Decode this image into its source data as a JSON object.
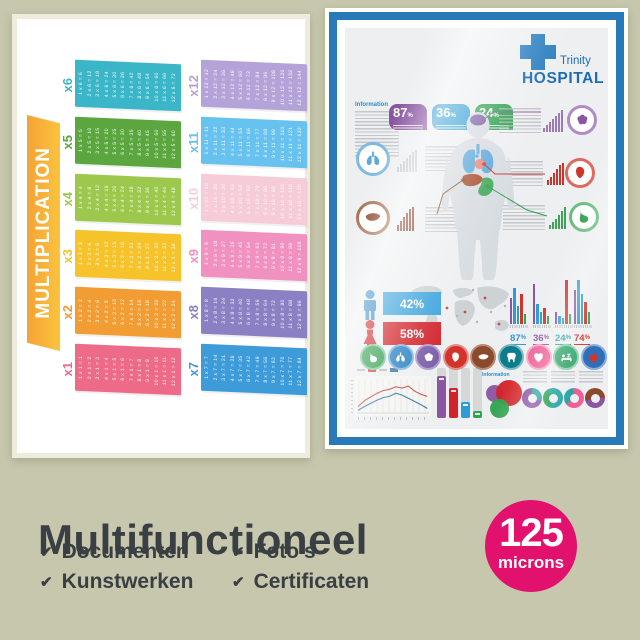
{
  "caption": {
    "title": "Multifunctioneel",
    "check_glyph": "✔",
    "features": [
      "Documenten",
      "Kunstwerken",
      "Foto's",
      "Certificaten"
    ],
    "badge": {
      "value": "125",
      "unit": "microns",
      "color": "#e2116e"
    }
  },
  "multiplication": {
    "title": "MULTIPLICATION",
    "banner_from": "#f4a336",
    "banner_to": "#fbc33e",
    "columns": [
      [
        {
          "label": "x6",
          "color": "#3bb6c8",
          "facts": [
            "1 x 6 = 6",
            "2 x 6 = 12",
            "3 x 6 = 18",
            "4 x 6 = 24",
            "5 x 6 = 30",
            "6 x 6 = 36",
            "7 x 6 = 42",
            "8 x 6 = 48",
            "9 x 6 = 54",
            "10 x 6 = 60",
            "11 x 6 = 66",
            "12 x 6 = 72"
          ]
        },
        {
          "label": "x5",
          "color": "#5ba63f",
          "facts": [
            "1 x 5 = 5",
            "2 x 5 = 10",
            "3 x 5 = 15",
            "4 x 5 = 20",
            "5 x 5 = 25",
            "6 x 5 = 30",
            "7 x 5 = 35",
            "8 x 5 = 40",
            "9 x 5 = 45",
            "10 x 5 = 50",
            "11 x 5 = 55",
            "12 x 5 = 60"
          ]
        },
        {
          "label": "x4",
          "color": "#9cc94d",
          "facts": [
            "1 x 4 = 4",
            "2 x 4 = 8",
            "3 x 4 = 12",
            "4 x 4 = 16",
            "5 x 4 = 20",
            "6 x 4 = 24",
            "7 x 4 = 28",
            "8 x 4 = 32",
            "9 x 4 = 36",
            "10 x 4 = 40",
            "11 x 4 = 44",
            "12 x 4 = 48"
          ]
        },
        {
          "label": "x3",
          "color": "#f6c32b",
          "facts": [
            "1 x 3 = 3",
            "2 x 3 = 6",
            "3 x 3 = 9",
            "4 x 3 = 12",
            "5 x 3 = 15",
            "6 x 3 = 18",
            "7 x 3 = 21",
            "8 x 3 = 24",
            "9 x 3 = 27",
            "10 x 3 = 30",
            "11 x 3 = 33",
            "12 x 3 = 36"
          ]
        },
        {
          "label": "x2",
          "color": "#f29d33",
          "facts": [
            "1 x 2 = 2",
            "2 x 2 = 4",
            "3 x 2 = 6",
            "4 x 2 = 8",
            "5 x 2 = 10",
            "6 x 2 = 12",
            "7 x 2 = 14",
            "8 x 2 = 16",
            "9 x 2 = 18",
            "10 x 2 = 20",
            "11 x 2 = 22",
            "12 x 2 = 24"
          ]
        },
        {
          "label": "x1",
          "color": "#ed6a88",
          "facts": [
            "1 x 1 = 1",
            "2 x 1 = 2",
            "3 x 1 = 3",
            "4 x 1 = 4",
            "5 x 1 = 5",
            "6 x 1 = 6",
            "7 x 1 = 7",
            "8 x 1 = 8",
            "9 x 1 = 9",
            "10 x 1 = 10",
            "11 x 1 = 11",
            "12 x 1 = 12"
          ]
        }
      ],
      [
        {
          "label": "x12",
          "color": "#b4a3d8",
          "facts": [
            "1 x 12 = 12",
            "2 x 12 = 24",
            "3 x 12 = 36",
            "4 x 12 = 48",
            "5 x 12 = 60",
            "6 x 12 = 72",
            "7 x 12 = 84",
            "8 x 12 = 96",
            "9 x 12 = 108",
            "10 x 12 = 120",
            "11 x 12 = 132",
            "12 x 12 = 144"
          ]
        },
        {
          "label": "x11",
          "color": "#67c2ef",
          "facts": [
            "1 x 11 = 11",
            "2 x 11 = 22",
            "3 x 11 = 33",
            "4 x 11 = 44",
            "5 x 11 = 55",
            "6 x 11 = 66",
            "7 x 11 = 77",
            "8 x 11 = 88",
            "9 x 11 = 99",
            "10 x 11 = 110",
            "11 x 11 = 121",
            "12 x 11 = 132"
          ]
        },
        {
          "label": "x10",
          "color": "#f6ccd9",
          "facts": [
            "1 x 10 = 10",
            "2 x 10 = 20",
            "3 x 10 = 30",
            "4 x 10 = 40",
            "5 x 10 = 50",
            "6 x 10 = 60",
            "7 x 10 = 70",
            "8 x 10 = 80",
            "9 x 10 = 90",
            "10 x 10 = 100",
            "11 x 10 = 110",
            "12 x 10 = 120"
          ]
        },
        {
          "label": "x9",
          "color": "#f191c0",
          "facts": [
            "1 x 9 = 9",
            "2 x 9 = 18",
            "3 x 9 = 27",
            "4 x 9 = 36",
            "5 x 9 = 45",
            "6 x 9 = 54",
            "7 x 9 = 63",
            "8 x 9 = 72",
            "9 x 9 = 81",
            "10 x 9 = 90",
            "11 x 9 = 99",
            "12 x 9 = 108"
          ]
        },
        {
          "label": "x8",
          "color": "#8b80c3",
          "facts": [
            "1 x 8 = 8",
            "2 x 8 = 16",
            "3 x 8 = 24",
            "4 x 8 = 32",
            "5 x 8 = 40",
            "6 x 8 = 48",
            "7 x 8 = 56",
            "8 x 8 = 64",
            "9 x 8 = 72",
            "10 x 8 = 80",
            "11 x 8 = 88",
            "12 x 8 = 96"
          ]
        },
        {
          "label": "x7",
          "color": "#3d9bd9",
          "facts": [
            "1 x 7 = 7",
            "2 x 7 = 14",
            "3 x 7 = 21",
            "4 x 7 = 28",
            "5 x 7 = 35",
            "6 x 7 = 42",
            "7 x 7 = 49",
            "8 x 7 = 56",
            "9 x 7 = 63",
            "10 x 7 = 70",
            "11 x 7 = 77",
            "12 x 7 = 84"
          ]
        }
      ]
    ]
  },
  "hospital": {
    "brand": {
      "line1": "Trinity",
      "line2": "HOSPITAL",
      "color": "#1a6cb5",
      "cross_color": "#2b7ec0"
    },
    "info_label": "Information",
    "info2_label": "Information",
    "badges": [
      {
        "value": "87",
        "unit": "%",
        "color": "#8a56a2"
      },
      {
        "value": "36",
        "unit": "%",
        "color": "#2e9bd6"
      },
      {
        "value": "24",
        "unit": "%",
        "color": "#2fa34f"
      }
    ],
    "callouts": [
      {
        "organ": "lungs",
        "color": "#5ca9da",
        "ring": "#7db9e2",
        "bars_color": "#c2c7ca",
        "bars": [
          5,
          8,
          11,
          14,
          17,
          20,
          22
        ]
      },
      {
        "organ": "liver",
        "color": "#8a4a2e",
        "ring": "#a96f4f",
        "bars_color": "#8a3b24",
        "bars": [
          6,
          10,
          14,
          18,
          22,
          24
        ]
      },
      {
        "organ": "brain",
        "color": "#8a56a2",
        "ring": "#b08cc6",
        "bars_color": "#9b7ab8",
        "bars": [
          4,
          7,
          10,
          13,
          16,
          19,
          22
        ]
      },
      {
        "organ": "heart-organ",
        "color": "#d2342c",
        "ring": "#dd6a60",
        "bars_color": "#c6352e",
        "bars": [
          5,
          8,
          12,
          16,
          20,
          22
        ]
      },
      {
        "organ": "stomach",
        "color": "#2f9e4e",
        "ring": "#6cbc82",
        "bars_color": "#3fa45b",
        "bars": [
          4,
          7,
          10,
          14,
          18,
          22
        ]
      }
    ],
    "genders": [
      {
        "value": "42%",
        "box_color": "#3aa3de",
        "icon": "male",
        "icon_color": "#2f86c4"
      },
      {
        "value": "58%",
        "box_color": "#d2232a",
        "icon": "female",
        "icon_color": "#d2232a"
      }
    ],
    "stats": {
      "bar_colors": [
        "#8a56a2",
        "#2e9bd6",
        "#2aa5a5",
        "#d2342c",
        "#2fa34f"
      ],
      "groups": [
        {
          "value": "87",
          "unit": "%",
          "color": "#2e9bd6",
          "bars": [
            26,
            36,
            18,
            30,
            10
          ]
        },
        {
          "value": "36",
          "unit": "%",
          "color": "#8a56a2",
          "bars": [
            40,
            20,
            12,
            16,
            8
          ]
        },
        {
          "value": "24",
          "unit": "%",
          "color": "#2aa5a5",
          "bars": [
            12,
            8,
            6,
            44,
            10
          ]
        },
        {
          "value": "74",
          "unit": "%",
          "color": "#d2342c",
          "bars": [
            34,
            44,
            30,
            22,
            12
          ]
        }
      ]
    },
    "organ_row": [
      {
        "name": "stomach",
        "color": "#2f9e4e",
        "ring": "#7cc793"
      },
      {
        "name": "lungs",
        "color": "#2f86c4",
        "ring": "#85b9e0"
      },
      {
        "name": "brain",
        "color": "#7b5fa8",
        "ring": "#b39cd0"
      },
      {
        "name": "heart-organ",
        "color": "#d2342c",
        "ring": "#e58d88"
      },
      {
        "name": "liver",
        "color": "#8a4a2e",
        "ring": "#b98a72"
      },
      {
        "name": "tooth",
        "color": "#0e7c8c",
        "ring": "#7ab7c0"
      },
      {
        "name": "heart",
        "color": "#ef5f96",
        "ring": "#f7a8c6"
      },
      {
        "name": "sleep",
        "color": "#35a66b",
        "ring": "#8fd0ad"
      },
      {
        "name": "apple",
        "color": "#2e6fb8",
        "ring": "#8aaede",
        "glyph_color": "#d2342c"
      }
    ],
    "line_chart": {
      "red_color": "#cc4b3f",
      "blue_color": "#3a77ad",
      "red_points": [
        20,
        38,
        50,
        62,
        70,
        74,
        82,
        78,
        84,
        68,
        58,
        52
      ],
      "blue_points": [
        8,
        20,
        30,
        40,
        48,
        52,
        62,
        56,
        46,
        36,
        26,
        14
      ]
    },
    "columns": {
      "track": "#d5d8d7",
      "values": [
        42,
        30,
        16,
        7
      ],
      "colors": [
        "#8a56a2",
        "#d2232a",
        "#2e9bd6",
        "#2fa34f"
      ]
    },
    "venn": [
      {
        "color": "#8a56a2"
      },
      {
        "color": "#d2232a"
      },
      {
        "color": "#2fa34f"
      }
    ],
    "donuts": [
      {
        "main": "#8a56a2",
        "arc": "#2aa5a5",
        "from": 0,
        "pct": 30
      },
      {
        "main": "#2aa5a5",
        "arc": "#2fa34f",
        "from": 200,
        "pct": 35
      },
      {
        "main": "#ef5f96",
        "arc": "#2aa5a5",
        "from": 230,
        "pct": 35
      },
      {
        "main": "#8a4a2e",
        "arc": "#8a56a2",
        "from": 90,
        "pct": 45
      }
    ]
  }
}
